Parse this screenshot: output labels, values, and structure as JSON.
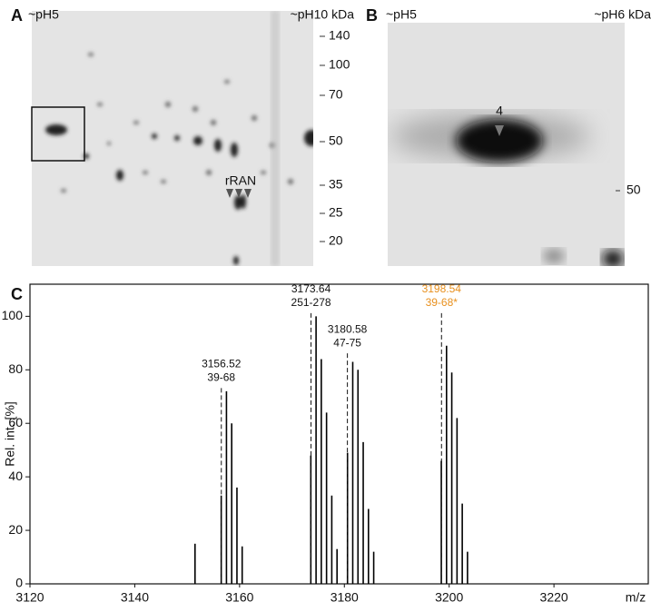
{
  "panels": {
    "A": {
      "label": "A",
      "left": "~pH5",
      "right": "~pH10 kDa",
      "mw": [
        140,
        100,
        70,
        50,
        35,
        25,
        20
      ],
      "marker": "rRAN"
    },
    "B": {
      "label": "B",
      "left": "~pH5",
      "right": "~pH6 kDa",
      "mw": [
        50
      ],
      "marker": "4"
    }
  },
  "chart_data": {
    "type": "spectrum",
    "panel_label": "C",
    "y_label": "Rel. int. [%]",
    "x_label": "m/z",
    "xlim": [
      3120,
      3238
    ],
    "ylim": [
      0,
      112
    ],
    "xticks": [
      3120,
      3140,
      3160,
      3180,
      3200,
      3220
    ],
    "yticks": [
      0,
      20,
      40,
      60,
      80,
      100
    ],
    "color": "#000000",
    "x": [
      3151.5,
      3156.5,
      3157.5,
      3158.5,
      3159.5,
      3160.5,
      3173.6,
      3174.6,
      3175.6,
      3176.6,
      3177.6,
      3178.6,
      3180.6,
      3181.6,
      3182.6,
      3183.6,
      3184.6,
      3185.6,
      3198.5,
      3199.5,
      3200.5,
      3201.5,
      3202.5,
      3203.5
    ],
    "values": [
      15,
      33,
      72,
      60,
      36,
      14,
      48,
      100,
      84,
      64,
      33,
      13,
      49,
      83,
      80,
      53,
      28,
      12,
      46,
      89,
      79,
      62,
      30,
      12
    ],
    "annotations": [
      {
        "mz": 3156.52,
        "range": "39-68"
      },
      {
        "mz": 3173.64,
        "range": "251-278"
      },
      {
        "mz": 3180.58,
        "range": "47-75"
      },
      {
        "mz": 3198.54,
        "range": "39-68*",
        "color": "#e8901e"
      }
    ]
  }
}
